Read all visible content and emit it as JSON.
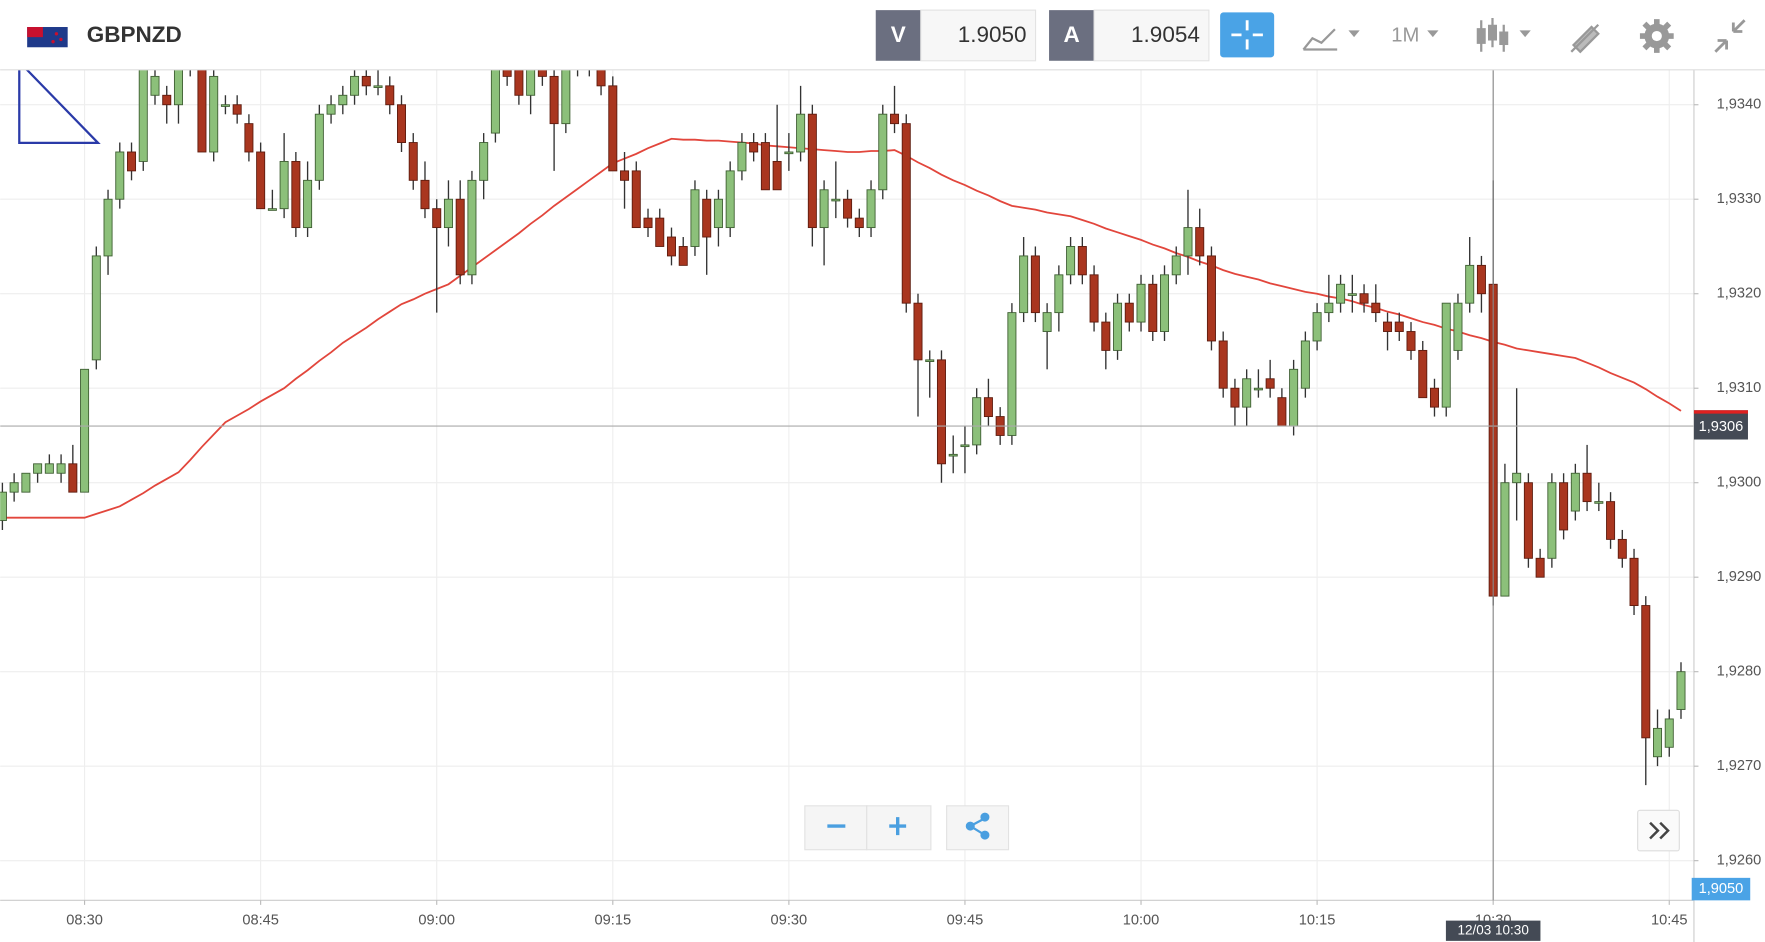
{
  "header": {
    "symbol": "GBPNZD",
    "sell_label": "V",
    "sell_price": "1.9050",
    "buy_label": "A",
    "buy_price": "1.9054",
    "timeframe": "1M"
  },
  "chart_data": {
    "type": "candlestick",
    "categories": [
      null,
      null,
      null,
      null,
      null,
      null,
      null,
      "08:30",
      null,
      null,
      null,
      null,
      null,
      null,
      null,
      null,
      null,
      null,
      null,
      null,
      null,
      null,
      "08:45",
      null,
      null,
      null,
      null,
      null,
      null,
      null,
      null,
      null,
      null,
      null,
      null,
      null,
      null,
      "09:00",
      null,
      null,
      null,
      null,
      null,
      null,
      null,
      null,
      null,
      null,
      null,
      null,
      null,
      null,
      "09:15",
      null,
      null,
      null,
      null,
      null,
      null,
      null,
      null,
      null,
      null,
      null,
      null,
      null,
      null,
      "09:30",
      null,
      null,
      null,
      null,
      null,
      null,
      null,
      null,
      null,
      null,
      null,
      null,
      null,
      null,
      "09:45",
      null,
      null,
      null,
      null,
      null,
      null,
      null,
      null,
      null,
      null,
      null,
      null,
      null,
      null,
      "10:00",
      null,
      null,
      null,
      null,
      null,
      null,
      null,
      null,
      null,
      null,
      null,
      null,
      null,
      null,
      "10:15",
      null,
      null,
      null,
      null,
      null,
      null,
      null,
      null,
      null,
      null,
      null,
      null,
      null,
      null,
      "10:30",
      null,
      null,
      null,
      null,
      null,
      null,
      null,
      null,
      null,
      null,
      null,
      null,
      null,
      null,
      "10:45",
      null
    ],
    "ohlc": [
      [
        1.9296,
        1.93,
        1.9295,
        1.9299
      ],
      [
        1.9299,
        1.9301,
        1.9298,
        1.93
      ],
      [
        1.9299,
        1.9301,
        1.9299,
        1.9301
      ],
      [
        1.9301,
        1.9302,
        1.93,
        1.9302
      ],
      [
        1.9301,
        1.9303,
        1.9301,
        1.9302
      ],
      [
        1.9301,
        1.9303,
        1.93,
        1.9302
      ],
      [
        1.9302,
        1.9304,
        1.9299,
        1.9299
      ],
      [
        1.9299,
        1.9312,
        1.9299,
        1.9312
      ],
      [
        1.9313,
        1.9325,
        1.9312,
        1.9324
      ],
      [
        1.9324,
        1.9331,
        1.9322,
        1.933
      ],
      [
        1.933,
        1.9336,
        1.9329,
        1.9335
      ],
      [
        1.9335,
        1.9336,
        1.9332,
        1.9333
      ],
      [
        1.9334,
        1.9345,
        1.9333,
        1.9344
      ],
      [
        1.9341,
        1.9345,
        1.934,
        1.9343
      ],
      [
        1.9341,
        1.9342,
        1.9338,
        1.934
      ],
      [
        1.934,
        1.9345,
        1.9338,
        1.9344
      ],
      [
        1.9344,
        1.9345,
        1.9343,
        1.9344
      ],
      [
        1.9344,
        1.9345,
        1.9335,
        1.9335
      ],
      [
        1.9335,
        1.9344,
        1.9334,
        1.9343
      ],
      [
        1.934,
        1.9341,
        1.9339,
        1.934
      ],
      [
        1.934,
        1.9341,
        1.9338,
        1.9339
      ],
      [
        1.9338,
        1.9339,
        1.9334,
        1.9335
      ],
      [
        1.9335,
        1.9336,
        1.9329,
        1.9329
      ],
      [
        1.9329,
        1.9331,
        1.9329,
        1.9329
      ],
      [
        1.9329,
        1.9337,
        1.9328,
        1.9334
      ],
      [
        1.9334,
        1.9335,
        1.9326,
        1.9327
      ],
      [
        1.9327,
        1.9334,
        1.9326,
        1.9332
      ],
      [
        1.9332,
        1.934,
        1.9331,
        1.9339
      ],
      [
        1.9339,
        1.9341,
        1.9338,
        1.934
      ],
      [
        1.934,
        1.9342,
        1.9339,
        1.9341
      ],
      [
        1.9341,
        1.9344,
        1.934,
        1.9343
      ],
      [
        1.9343,
        1.9344,
        1.9341,
        1.9342
      ],
      [
        1.9342,
        1.9344,
        1.9341,
        1.9342
      ],
      [
        1.9342,
        1.9343,
        1.9339,
        1.934
      ],
      [
        1.934,
        1.9341,
        1.9335,
        1.9336
      ],
      [
        1.9336,
        1.9337,
        1.9331,
        1.9332
      ],
      [
        1.9332,
        1.9334,
        1.9328,
        1.9329
      ],
      [
        1.9329,
        1.933,
        1.9318,
        1.9327
      ],
      [
        1.9327,
        1.9332,
        1.9325,
        1.933
      ],
      [
        1.933,
        1.9332,
        1.9321,
        1.9322
      ],
      [
        1.9322,
        1.9333,
        1.9321,
        1.9332
      ],
      [
        1.9332,
        1.9337,
        1.933,
        1.9336
      ],
      [
        1.9337,
        1.9345,
        1.9336,
        1.9344
      ],
      [
        1.9344,
        1.9345,
        1.9342,
        1.9343
      ],
      [
        1.9344,
        1.9345,
        1.934,
        1.9341
      ],
      [
        1.9341,
        1.9345,
        1.9339,
        1.9344
      ],
      [
        1.9344,
        1.9345,
        1.9342,
        1.9343
      ],
      [
        1.9343,
        1.9345,
        1.9333,
        1.9338
      ],
      [
        1.9338,
        1.9345,
        1.9337,
        1.9344
      ],
      [
        1.9344,
        1.9345,
        1.9343,
        1.9344
      ],
      [
        1.9344,
        1.9345,
        1.9343,
        1.9344
      ],
      [
        1.9344,
        1.9345,
        1.9341,
        1.9342
      ],
      [
        1.9342,
        1.9343,
        1.9333,
        1.9333
      ],
      [
        1.9333,
        1.9335,
        1.9329,
        1.9332
      ],
      [
        1.9333,
        1.9334,
        1.9327,
        1.9327
      ],
      [
        1.9328,
        1.9329,
        1.9326,
        1.9327
      ],
      [
        1.9328,
        1.9329,
        1.9325,
        1.9325
      ],
      [
        1.9326,
        1.9327,
        1.9323,
        1.9324
      ],
      [
        1.9325,
        1.9326,
        1.9323,
        1.9323
      ],
      [
        1.9325,
        1.9332,
        1.9324,
        1.9331
      ],
      [
        1.933,
        1.9331,
        1.9322,
        1.9326
      ],
      [
        1.9327,
        1.9331,
        1.9325,
        1.933
      ],
      [
        1.9327,
        1.9334,
        1.9326,
        1.9333
      ],
      [
        1.9333,
        1.9337,
        1.9332,
        1.9336
      ],
      [
        1.9336,
        1.9337,
        1.9334,
        1.9335
      ],
      [
        1.9336,
        1.9337,
        1.9331,
        1.9331
      ],
      [
        1.9334,
        1.934,
        1.9331,
        1.9331
      ],
      [
        1.9335,
        1.9337,
        1.9333,
        1.9335
      ],
      [
        1.9335,
        1.9342,
        1.9334,
        1.9339
      ],
      [
        1.9339,
        1.934,
        1.9325,
        1.9327
      ],
      [
        1.9327,
        1.9332,
        1.9323,
        1.9331
      ],
      [
        1.933,
        1.9334,
        1.9328,
        1.933
      ],
      [
        1.933,
        1.9331,
        1.9327,
        1.9328
      ],
      [
        1.9328,
        1.9329,
        1.9326,
        1.9327
      ],
      [
        1.9327,
        1.9332,
        1.9326,
        1.9331
      ],
      [
        1.9331,
        1.934,
        1.933,
        1.9339
      ],
      [
        1.9339,
        1.9342,
        1.9337,
        1.9338
      ],
      [
        1.9338,
        1.9339,
        1.9318,
        1.9319
      ],
      [
        1.9319,
        1.932,
        1.9307,
        1.9313
      ],
      [
        1.9313,
        1.9314,
        1.9309,
        1.9313
      ],
      [
        1.9313,
        1.9314,
        1.93,
        1.9302
      ],
      [
        1.9303,
        1.9305,
        1.9301,
        1.9303
      ],
      [
        1.9304,
        1.9306,
        1.9301,
        1.9304
      ],
      [
        1.9304,
        1.931,
        1.9303,
        1.9309
      ],
      [
        1.9309,
        1.9311,
        1.9306,
        1.9307
      ],
      [
        1.9307,
        1.9308,
        1.9304,
        1.9305
      ],
      [
        1.9305,
        1.9319,
        1.9304,
        1.9318
      ],
      [
        1.9318,
        1.9326,
        1.9317,
        1.9324
      ],
      [
        1.9324,
        1.9325,
        1.9317,
        1.9318
      ],
      [
        1.9316,
        1.9319,
        1.9312,
        1.9318
      ],
      [
        1.9318,
        1.9323,
        1.9316,
        1.9322
      ],
      [
        1.9322,
        1.9326,
        1.9321,
        1.9325
      ],
      [
        1.9325,
        1.9326,
        1.9321,
        1.9322
      ],
      [
        1.9322,
        1.9323,
        1.9316,
        1.9317
      ],
      [
        1.9317,
        1.9318,
        1.9312,
        1.9314
      ],
      [
        1.9314,
        1.932,
        1.9313,
        1.9319
      ],
      [
        1.9319,
        1.932,
        1.9316,
        1.9317
      ],
      [
        1.9317,
        1.9322,
        1.9316,
        1.9321
      ],
      [
        1.9321,
        1.9322,
        1.9315,
        1.9316
      ],
      [
        1.9316,
        1.9323,
        1.9315,
        1.9322
      ],
      [
        1.9322,
        1.9325,
        1.9321,
        1.9324
      ],
      [
        1.9324,
        1.9331,
        1.9322,
        1.9327
      ],
      [
        1.9327,
        1.9329,
        1.9323,
        1.9324
      ],
      [
        1.9324,
        1.9325,
        1.9314,
        1.9315
      ],
      [
        1.9315,
        1.9316,
        1.9309,
        1.931
      ],
      [
        1.931,
        1.9311,
        1.9306,
        1.9308
      ],
      [
        1.9308,
        1.9312,
        1.9306,
        1.9311
      ],
      [
        1.931,
        1.9312,
        1.9309,
        1.931
      ],
      [
        1.9311,
        1.9313,
        1.9309,
        1.931
      ],
      [
        1.9309,
        1.931,
        1.9306,
        1.9306
      ],
      [
        1.9306,
        1.9313,
        1.9305,
        1.9312
      ],
      [
        1.931,
        1.9316,
        1.9309,
        1.9315
      ],
      [
        1.9315,
        1.9319,
        1.9314,
        1.9318
      ],
      [
        1.9318,
        1.9322,
        1.9317,
        1.9319
      ],
      [
        1.9319,
        1.9322,
        1.9318,
        1.9321
      ],
      [
        1.932,
        1.9322,
        1.9318,
        1.932
      ],
      [
        1.932,
        1.9321,
        1.9318,
        1.9319
      ],
      [
        1.9319,
        1.9321,
        1.9317,
        1.9318
      ],
      [
        1.9317,
        1.9318,
        1.9314,
        1.9316
      ],
      [
        1.9317,
        1.9318,
        1.9315,
        1.9316
      ],
      [
        1.9316,
        1.9317,
        1.9313,
        1.9314
      ],
      [
        1.9314,
        1.9315,
        1.9309,
        1.9309
      ],
      [
        1.931,
        1.9311,
        1.9307,
        1.9308
      ],
      [
        1.9308,
        1.9319,
        1.9307,
        1.9319
      ],
      [
        1.9314,
        1.932,
        1.9313,
        1.9319
      ],
      [
        1.9319,
        1.9326,
        1.9318,
        1.9323
      ],
      [
        1.9323,
        1.9324,
        1.9318,
        1.932
      ],
      [
        1.9321,
        1.9332,
        1.9287,
        1.9288
      ],
      [
        1.9288,
        1.9302,
        1.9288,
        1.93
      ],
      [
        1.93,
        1.931,
        1.9296,
        1.9301
      ],
      [
        1.93,
        1.9301,
        1.9291,
        1.9292
      ],
      [
        1.9292,
        1.9293,
        1.929,
        1.929
      ],
      [
        1.9292,
        1.9301,
        1.9291,
        1.93
      ],
      [
        1.93,
        1.9301,
        1.9294,
        1.9295
      ],
      [
        1.9297,
        1.9302,
        1.9296,
        1.9301
      ],
      [
        1.9301,
        1.9304,
        1.9297,
        1.9298
      ],
      [
        1.9298,
        1.93,
        1.9297,
        1.9298
      ],
      [
        1.9298,
        1.9299,
        1.9293,
        1.9294
      ],
      [
        1.9294,
        1.9295,
        1.9291,
        1.9292
      ],
      [
        1.9292,
        1.9293,
        1.9286,
        1.9287
      ],
      [
        1.9287,
        1.9288,
        1.9268,
        1.9273
      ],
      [
        1.9271,
        1.9276,
        1.927,
        1.9274
      ],
      [
        1.9272,
        1.9276,
        1.9271,
        1.9275
      ],
      [
        1.9276,
        1.9281,
        1.9275,
        1.928
      ]
    ],
    "ma_values": [
      1.92963,
      1.92963,
      1.92963,
      1.92963,
      1.92963,
      1.92963,
      1.92963,
      1.92963,
      1.92967,
      1.92971,
      1.92975,
      1.92982,
      1.92989,
      1.92997,
      1.93004,
      1.93011,
      1.93024,
      1.93038,
      1.93051,
      1.93064,
      1.93071,
      1.93078,
      1.93086,
      1.93093,
      1.931,
      1.9311,
      1.93119,
      1.93129,
      1.93138,
      1.93148,
      1.93156,
      1.93164,
      1.93173,
      1.93181,
      1.93189,
      1.93194,
      1.932,
      1.93205,
      1.9321,
      1.93219,
      1.93228,
      1.93237,
      1.93246,
      1.93255,
      1.93264,
      1.93274,
      1.93283,
      1.93293,
      1.93302,
      1.93311,
      1.9332,
      1.93329,
      1.93338,
      1.93343,
      1.93348,
      1.93354,
      1.93359,
      1.93364,
      1.93363,
      1.93363,
      1.93362,
      1.93362,
      1.93361,
      1.9336,
      1.93359,
      1.93357,
      1.93356,
      1.93355,
      1.93354,
      1.93353,
      1.93352,
      1.93351,
      1.9335,
      1.9335,
      1.93351,
      1.93351,
      1.93352,
      1.93346,
      1.93339,
      1.93333,
      1.93326,
      1.9332,
      1.93315,
      1.93309,
      1.93304,
      1.93298,
      1.93293,
      1.93291,
      1.93289,
      1.93286,
      1.93284,
      1.93282,
      1.93278,
      1.93274,
      1.93269,
      1.93265,
      1.93261,
      1.93257,
      1.93252,
      1.93248,
      1.93243,
      1.93239,
      1.93234,
      1.9323,
      1.93225,
      1.93221,
      1.93218,
      1.93215,
      1.93211,
      1.93208,
      1.93205,
      1.93202,
      1.932,
      1.93197,
      1.93195,
      1.93192,
      1.93188,
      1.93185,
      1.93181,
      1.93178,
      1.93174,
      1.9317,
      1.93167,
      1.93163,
      1.9316,
      1.93156,
      1.93153,
      1.93149,
      1.93146,
      1.93142,
      1.9314,
      1.93138,
      1.93136,
      1.93134,
      1.93132,
      1.93127,
      1.93122,
      1.93116,
      1.93111,
      1.93106,
      1.93099,
      1.93091,
      1.93084,
      1.93076
    ],
    "ylim": [
      1.92558,
      1.93437
    ],
    "yticks": [
      {
        "value": 1.926,
        "label": "1,9260"
      },
      {
        "value": 1.927,
        "label": "1,9270"
      },
      {
        "value": 1.928,
        "label": "1,9280"
      },
      {
        "value": 1.929,
        "label": "1,9290"
      },
      {
        "value": 1.93,
        "label": "1,9300"
      },
      {
        "value": 1.931,
        "label": "1,9310"
      },
      {
        "value": 1.932,
        "label": "1,9320"
      },
      {
        "value": 1.933,
        "label": "1,9330"
      },
      {
        "value": 1.934,
        "label": "1,9340"
      }
    ],
    "current_price": {
      "value": 1.9306,
      "label": "1,9306"
    },
    "bid_tag": "1,9050",
    "crosshair_label": "12/03 10:30",
    "grid": true,
    "up_color": "#8cc07a",
    "down_color": "#a9361f",
    "ma_color": "#e2463c"
  }
}
